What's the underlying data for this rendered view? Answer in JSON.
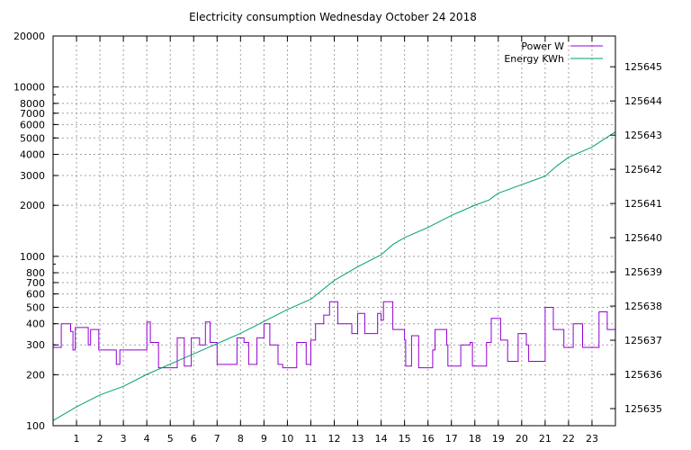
{
  "chart_data": {
    "type": "line",
    "title": "Electricity consumption Wednesday October 24 2018",
    "legend_position": "top-right",
    "grid": true,
    "x_axis": {
      "min": 0,
      "max": 24,
      "ticks": [
        "1",
        "2",
        "3",
        "4",
        "5",
        "6",
        "7",
        "8",
        "9",
        "10",
        "11",
        "12",
        "13",
        "14",
        "15",
        "16",
        "17",
        "18",
        "19",
        "20",
        "21",
        "22",
        "23"
      ]
    },
    "y_left": {
      "scale": "log",
      "min": 100,
      "max": 20000,
      "ticks": [
        "100",
        "200",
        "300",
        "400",
        "500",
        "600",
        "700",
        "800",
        "1000",
        "2000",
        "3000",
        "4000",
        "5000",
        "6000",
        "7000",
        "8000",
        "10000",
        "20000"
      ]
    },
    "y_right": {
      "min": 125634.5,
      "max": 125645.9,
      "ticks": [
        "125635",
        "125636",
        "125637",
        "125638",
        "125639",
        "125640",
        "125641",
        "125642",
        "125643",
        "125644",
        "125645"
      ]
    },
    "series": [
      {
        "name": "Power W",
        "color": "#9400d3",
        "axis": "left",
        "step": true,
        "points": [
          [
            0.0,
            290
          ],
          [
            0.35,
            400
          ],
          [
            0.75,
            360
          ],
          [
            0.85,
            280
          ],
          [
            0.95,
            380
          ],
          [
            1.5,
            300
          ],
          [
            1.6,
            370
          ],
          [
            1.95,
            280
          ],
          [
            2.7,
            230
          ],
          [
            2.85,
            280
          ],
          [
            4.0,
            410
          ],
          [
            4.15,
            310
          ],
          [
            4.5,
            220
          ],
          [
            5.3,
            330
          ],
          [
            5.6,
            225
          ],
          [
            5.9,
            330
          ],
          [
            6.25,
            300
          ],
          [
            6.5,
            410
          ],
          [
            6.7,
            310
          ],
          [
            7.0,
            230
          ],
          [
            7.85,
            330
          ],
          [
            8.15,
            310
          ],
          [
            8.35,
            230
          ],
          [
            8.7,
            330
          ],
          [
            9.0,
            400
          ],
          [
            9.25,
            300
          ],
          [
            9.6,
            230
          ],
          [
            9.8,
            220
          ],
          [
            10.4,
            310
          ],
          [
            10.8,
            230
          ],
          [
            11.0,
            320
          ],
          [
            11.2,
            400
          ],
          [
            11.55,
            450
          ],
          [
            11.8,
            540
          ],
          [
            12.15,
            400
          ],
          [
            12.75,
            350
          ],
          [
            13.0,
            460
          ],
          [
            13.3,
            350
          ],
          [
            13.85,
            460
          ],
          [
            14.0,
            420
          ],
          [
            14.1,
            540
          ],
          [
            14.5,
            370
          ],
          [
            15.0,
            320
          ],
          [
            15.05,
            225
          ],
          [
            15.3,
            340
          ],
          [
            15.6,
            220
          ],
          [
            16.2,
            280
          ],
          [
            16.3,
            370
          ],
          [
            16.8,
            300
          ],
          [
            16.85,
            225
          ],
          [
            17.4,
            300
          ],
          [
            17.8,
            310
          ],
          [
            17.9,
            225
          ],
          [
            18.5,
            310
          ],
          [
            18.7,
            430
          ],
          [
            19.1,
            320
          ],
          [
            19.4,
            240
          ],
          [
            19.85,
            350
          ],
          [
            20.2,
            300
          ],
          [
            20.3,
            240
          ],
          [
            21.0,
            500
          ],
          [
            21.35,
            370
          ],
          [
            21.8,
            290
          ],
          [
            22.2,
            400
          ],
          [
            22.6,
            290
          ],
          [
            23.3,
            470
          ],
          [
            23.65,
            370
          ],
          [
            24.0,
            370
          ]
        ]
      },
      {
        "name": "Energy KWh",
        "color": "#009e73",
        "axis": "right",
        "step": false,
        "points": [
          [
            0.0,
            125634.65
          ],
          [
            1.0,
            125635.05
          ],
          [
            2.0,
            125635.4
          ],
          [
            3.0,
            125635.65
          ],
          [
            4.0,
            125636.0
          ],
          [
            5.0,
            125636.3
          ],
          [
            6.0,
            125636.6
          ],
          [
            7.0,
            125636.9
          ],
          [
            8.0,
            125637.2
          ],
          [
            9.0,
            125637.55
          ],
          [
            10.0,
            125637.9
          ],
          [
            11.0,
            125638.2
          ],
          [
            12.0,
            125638.75
          ],
          [
            13.0,
            125639.15
          ],
          [
            14.0,
            125639.5
          ],
          [
            14.5,
            125639.8
          ],
          [
            15.0,
            125640.0
          ],
          [
            16.0,
            125640.3
          ],
          [
            17.0,
            125640.65
          ],
          [
            18.0,
            125640.95
          ],
          [
            18.6,
            125641.1
          ],
          [
            19.0,
            125641.3
          ],
          [
            20.0,
            125641.55
          ],
          [
            20.6,
            125641.7
          ],
          [
            21.0,
            125641.8
          ],
          [
            21.5,
            125642.1
          ],
          [
            22.0,
            125642.35
          ],
          [
            23.0,
            125642.65
          ],
          [
            24.0,
            125643.1
          ]
        ]
      }
    ]
  }
}
